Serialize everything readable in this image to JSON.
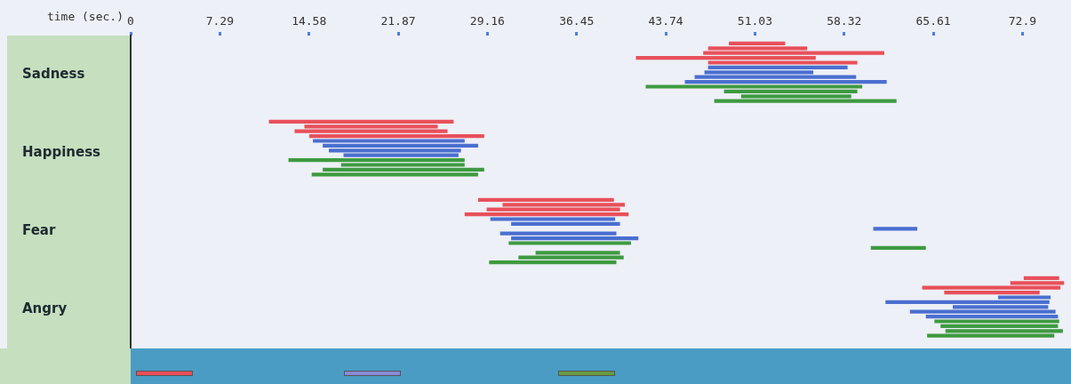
{
  "chart_data": {
    "type": "bar",
    "orientation": "horizontal",
    "xlabel": "time (sec.)",
    "categories": [
      "Sadness",
      "Happiness",
      "Fear",
      "Angry"
    ],
    "xlim": [
      0,
      76.5
    ],
    "xticks": [
      0,
      7.29,
      14.58,
      21.87,
      29.16,
      36.45,
      43.74,
      51.03,
      58.32,
      65.61,
      72.9
    ],
    "grid": false,
    "legend": false,
    "series": [
      {
        "colors": [
          "#e8505a",
          "#e8505a",
          "#e8505a",
          "#e8505a"
        ],
        "base": [
          48.9,
          11.3,
          28.4,
          73.0
        ],
        "values": [
          4.6,
          15.1,
          11.1,
          2.9
        ]
      },
      {
        "colors": [
          "#e8505a",
          "#e8505a",
          "#e8505a",
          "#e8505a"
        ],
        "base": [
          47.2,
          14.2,
          30.4,
          71.9
        ],
        "values": [
          8.1,
          10.9,
          10.0,
          4.4
        ]
      },
      {
        "colors": [
          "#e8505a",
          "#e8505a",
          "#e8505a",
          "#e8505a"
        ],
        "base": [
          46.8,
          13.4,
          29.1,
          64.7
        ],
        "values": [
          14.8,
          12.5,
          10.9,
          11.3
        ]
      },
      {
        "colors": [
          "#e8505a",
          "#e8505a",
          "#e8505a",
          "#e8505a"
        ],
        "base": [
          41.3,
          14.6,
          27.3,
          66.5
        ],
        "values": [
          14.7,
          14.3,
          13.4,
          7.8
        ]
      },
      {
        "colors": [
          "#e8505a",
          "#4a6fd0",
          "#4a6fd0",
          "#4a6fd0"
        ],
        "base": [
          47.2,
          14.9,
          29.4,
          70.9
        ],
        "values": [
          12.2,
          12.4,
          10.2,
          4.3
        ]
      },
      {
        "colors": [
          "#4a6fd0",
          "#4a6fd0",
          "#4a6fd0",
          "#4a6fd0"
        ],
        "base": [
          47.2,
          15.7,
          31.1,
          61.7
        ],
        "values": [
          11.4,
          12.7,
          8.9,
          13.4
        ]
      },
      {
        "colors": [
          "#4a6fd0",
          "#4a6fd0",
          "#4a6fd0",
          "#4a6fd0"
        ],
        "base": [
          46.9,
          16.2,
          60.7,
          67.2
        ],
        "values": [
          8.9,
          10.8,
          3.6,
          7.8
        ]
      },
      {
        "colors": [
          "#4a6fd0",
          "#4a6fd0",
          "#4a6fd0",
          "#4a6fd0"
        ],
        "base": [
          46.1,
          17.4,
          30.2,
          63.7
        ],
        "values": [
          13.2,
          9.4,
          9.5,
          11.9
        ]
      },
      {
        "colors": [
          "#4a6fd0",
          "#3e9a40",
          "#4a6fd0",
          "#4a6fd0"
        ],
        "base": [
          45.3,
          12.9,
          31.1,
          65.0
        ],
        "values": [
          16.5,
          14.4,
          10.4,
          10.8
        ]
      },
      {
        "colors": [
          "#3e9a40",
          "#3e9a40",
          "#3e9a40",
          "#3e9a40"
        ],
        "base": [
          42.1,
          17.2,
          30.9,
          65.7
        ],
        "values": [
          17.7,
          10.1,
          10.0,
          10.2
        ]
      },
      {
        "colors": [
          "#3e9a40",
          "#3e9a40",
          "#3e9a40",
          "#3e9a40"
        ],
        "base": [
          48.5,
          15.7,
          60.5,
          66.2
        ],
        "values": [
          10.9,
          13.2,
          4.5,
          9.6
        ]
      },
      {
        "colors": [
          "#3e9a40",
          "#3e9a40",
          "#3e9a40",
          "#3e9a40"
        ],
        "base": [
          49.9,
          14.8,
          33.1,
          66.6
        ],
        "values": [
          9.0,
          13.6,
          6.9,
          9.6
        ]
      },
      {
        "colors": [
          "#3e9a40",
          null,
          "#3e9a40",
          "#3e9a40"
        ],
        "base": [
          47.7,
          null,
          31.7,
          65.1
        ],
        "values": [
          14.9,
          null,
          8.6,
          10.4
        ]
      },
      {
        "colors": [
          null,
          null,
          "#3e9a40",
          null
        ],
        "base": [
          null,
          null,
          29.3,
          null
        ],
        "values": [
          null,
          null,
          10.4,
          null
        ]
      }
    ]
  }
}
